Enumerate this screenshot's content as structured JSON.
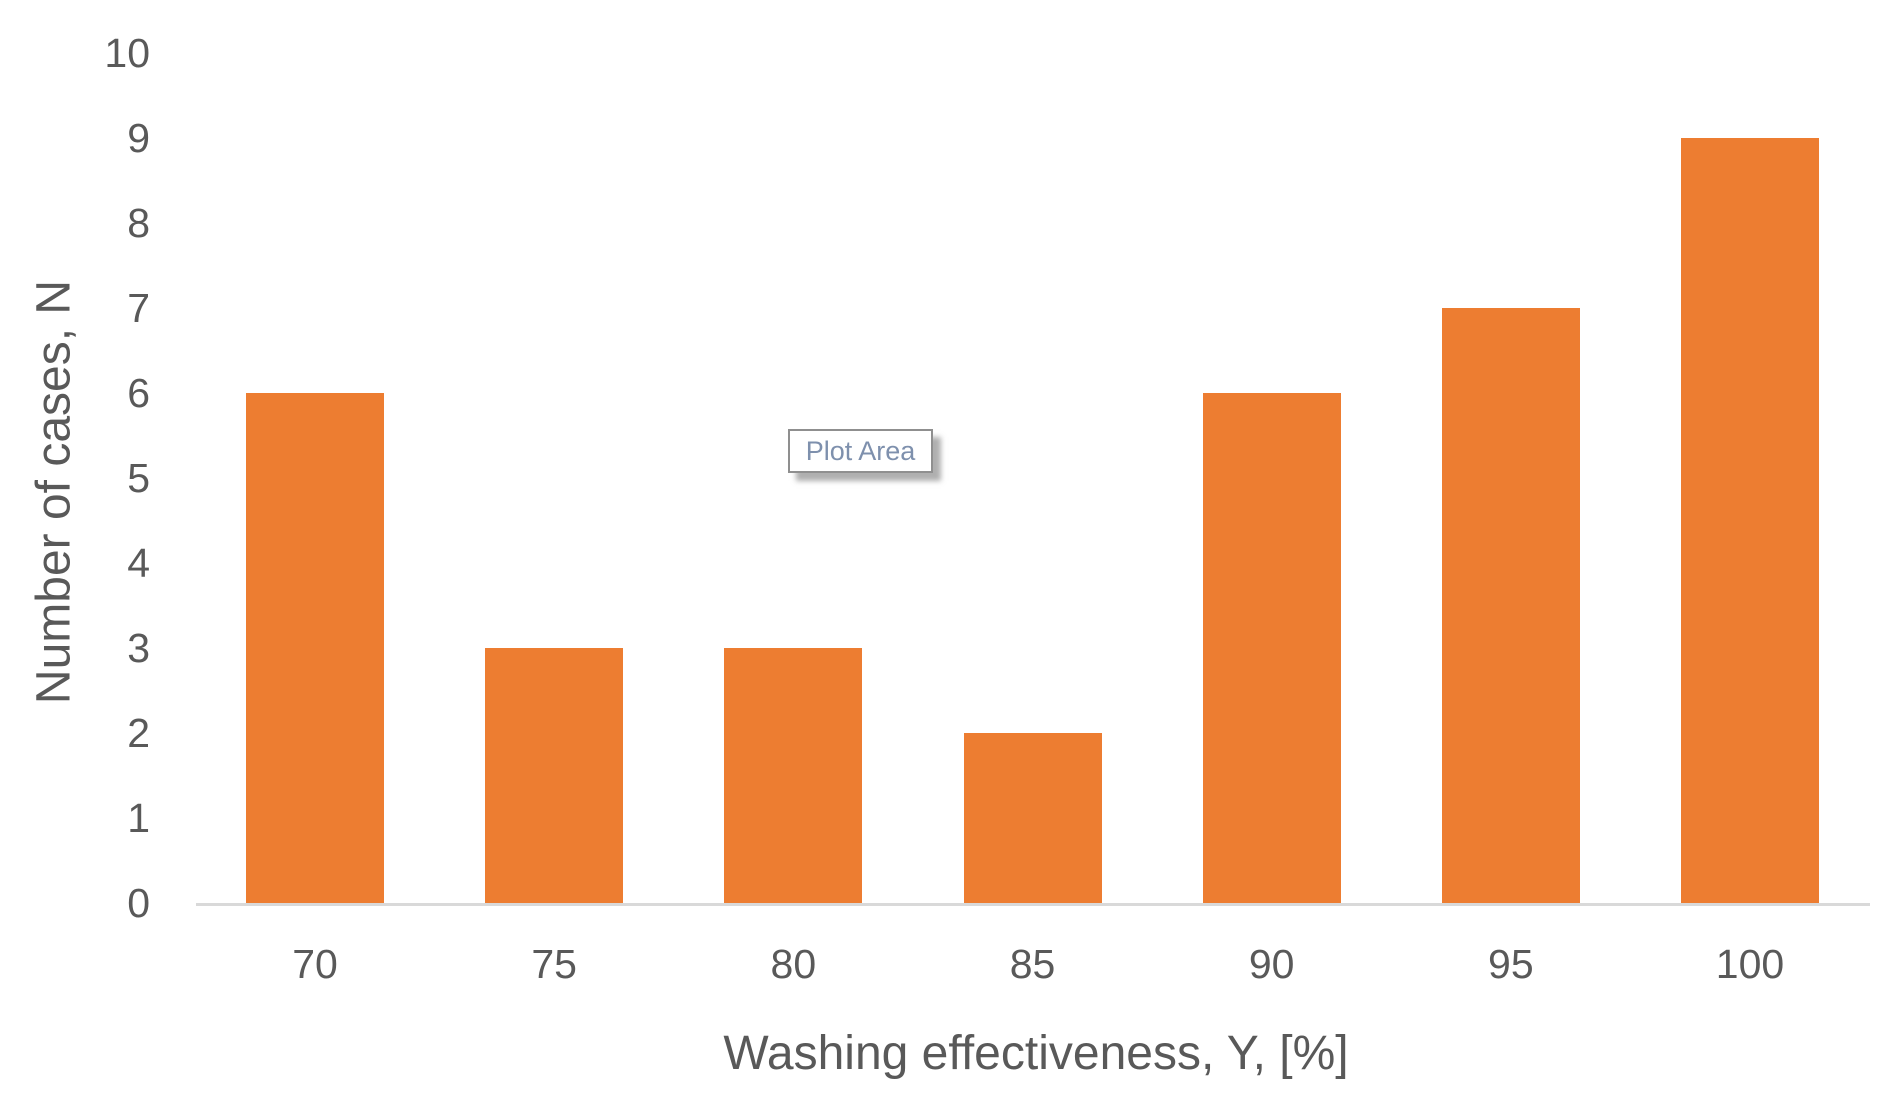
{
  "tooltip": {
    "label": "Plot Area"
  },
  "chart_data": {
    "type": "bar",
    "categories": [
      "70",
      "75",
      "80",
      "85",
      "90",
      "95",
      "100"
    ],
    "values": [
      6,
      3,
      3,
      2,
      6,
      7,
      9
    ],
    "title": "",
    "xlabel": "Washing effectiveness, Y, [%]",
    "ylabel": "Number of cases, N",
    "ylim": [
      0,
      10
    ],
    "ytick_step": 1,
    "grid": false,
    "legend": false,
    "colors": {
      "bar": "#ED7D31",
      "axis_text": "#595959",
      "axis_line": "#D9D9D9",
      "tooltip_text": "#7e90ad",
      "tooltip_border": "#8f8f8f"
    }
  }
}
